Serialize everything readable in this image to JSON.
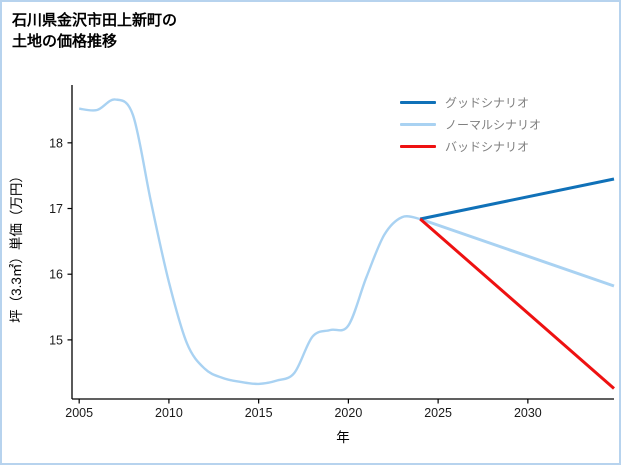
{
  "title": {
    "line1": "石川県金沢市田上新町の",
    "line2": "土地の価格推移"
  },
  "chart_data": {
    "type": "line",
    "title": "石川県金沢市田上新町の土地の価格推移",
    "xlabel": "年",
    "ylabel": "坪（3.3㎡）単価（万円）",
    "xlim": [
      2004.6,
      2034.8
    ],
    "ylim": [
      14.1,
      18.85
    ],
    "xticks": [
      2005,
      2010,
      2015,
      2020,
      2025,
      2030
    ],
    "yticks": [
      15,
      16,
      17,
      18
    ],
    "grid": false,
    "legend_position": "upper right",
    "axis_color": "#000000",
    "tick_label_color": "#1a1a1a",
    "legend_text_color": "#808080",
    "series": [
      {
        "id": "history",
        "label": "",
        "in_legend": false,
        "color": "#a9d2f2",
        "stroke_width": 2.4,
        "smooth": true,
        "x": [
          2005,
          2006,
          2007,
          2008,
          2009,
          2010,
          2011,
          2012,
          2013,
          2014,
          2015,
          2016,
          2017,
          2018,
          2019,
          2020,
          2021,
          2022,
          2023,
          2024
        ],
        "y": [
          18.52,
          18.5,
          18.66,
          18.42,
          17.1,
          15.88,
          14.95,
          14.56,
          14.42,
          14.36,
          14.33,
          14.38,
          14.5,
          15.05,
          15.15,
          15.22,
          15.95,
          16.6,
          16.87,
          16.84
        ]
      },
      {
        "id": "good",
        "label": "グッドシナリオ",
        "in_legend": true,
        "color": "#1071b8",
        "stroke_width": 3,
        "smooth": false,
        "x": [
          2024,
          2034.8
        ],
        "y": [
          16.84,
          17.45
        ]
      },
      {
        "id": "normal",
        "label": "ノーマルシナリオ",
        "in_legend": true,
        "color": "#a9d2f2",
        "stroke_width": 3,
        "smooth": false,
        "x": [
          2024,
          2034.8
        ],
        "y": [
          16.84,
          15.82
        ]
      },
      {
        "id": "bad",
        "label": "バッドシナリオ",
        "in_legend": true,
        "color": "#ee1111",
        "stroke_width": 3,
        "smooth": false,
        "x": [
          2024,
          2034.8
        ],
        "y": [
          16.84,
          14.26
        ]
      }
    ]
  }
}
